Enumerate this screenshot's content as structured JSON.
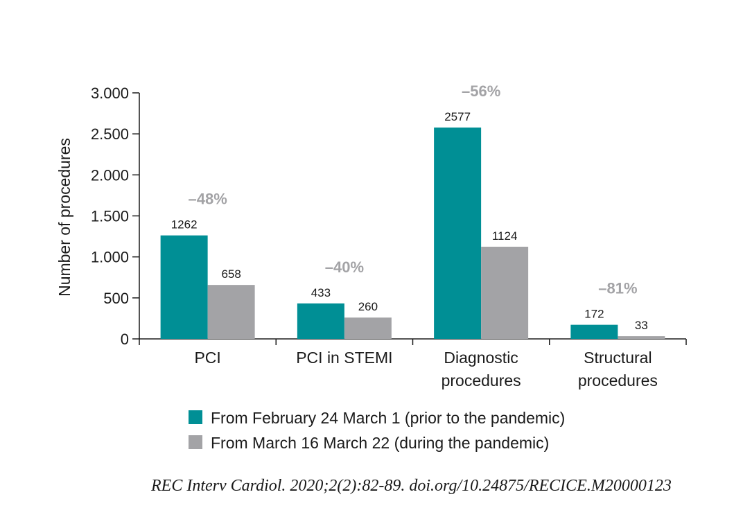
{
  "chart_data": {
    "type": "bar",
    "ylabel": "Number of procedures",
    "ylim": [
      0,
      3000
    ],
    "y_ticks": [
      {
        "value": 0,
        "label": "0"
      },
      {
        "value": 500,
        "label": "500"
      },
      {
        "value": 1000,
        "label": "1.000"
      },
      {
        "value": 1500,
        "label": "1.500"
      },
      {
        "value": 2000,
        "label": "2.000"
      },
      {
        "value": 2500,
        "label": "2.500"
      },
      {
        "value": 3000,
        "label": "3.000"
      }
    ],
    "categories": [
      [
        "PCI"
      ],
      [
        "PCI in STEMI"
      ],
      [
        "Diagnostic",
        "procedures"
      ],
      [
        "Structural",
        "procedures"
      ]
    ],
    "series": [
      {
        "name": "From February 24 March 1 (prior to the pandemic)",
        "color": "#008f95",
        "values": [
          1262,
          433,
          2577,
          172
        ]
      },
      {
        "name": "From March 16 March 22 (during the pandemic)",
        "color": "#a3a3a6",
        "values": [
          658,
          260,
          1124,
          33
        ]
      }
    ],
    "annotations": [
      "–48%",
      "–40%",
      "–56%",
      "–81%"
    ],
    "grid": false,
    "legend_position": "bottom"
  },
  "citation": "REC Interv Cardiol. 2020;2(2):82-89. doi.org/10.24875/RECICE.M20000123"
}
